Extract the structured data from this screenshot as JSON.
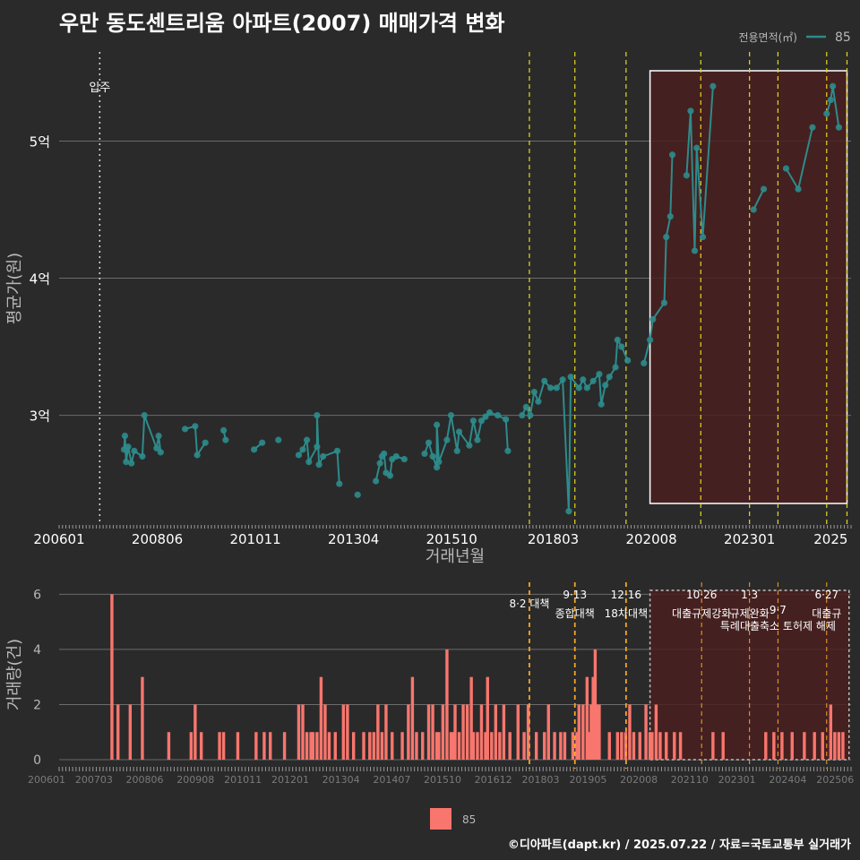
{
  "title": "우만 동도센트리움 아파트(2007) 매매가격 변화",
  "credit": "©디아파트(dapt.kr) / 2025.07.22 / 자료=국토교통부 실거래가",
  "colors": {
    "background": "#2a2a2b",
    "price_line": "#2e8b8b",
    "volume_bar": "#f8766d",
    "policy_line": "#e6d71e",
    "policy_line_low": "#f5a623",
    "highlight_fill": "#4a1f1f",
    "grid": "#6b6b6b",
    "text": "#ffffff",
    "muted": "#b8b8b8"
  },
  "chart_data": [
    {
      "type": "line",
      "name": "price",
      "xlabel": "거래년월",
      "ylabel": "평균가(원)",
      "legend_title": "전용면적(㎡)",
      "legend_entry": "85",
      "x_range": [
        2006.0,
        2025.5
      ],
      "y_range": [
        2.2,
        5.65
      ],
      "y_ticks": [
        3,
        4,
        5
      ],
      "y_tick_labels": [
        "3억",
        "4억",
        "5억"
      ],
      "x_ticks": [
        2006.0,
        2008.4167,
        2010.8333,
        2013.25,
        2015.6667,
        2018.1667,
        2020.5833,
        2023.0,
        2025.0
      ],
      "x_tick_labels": [
        "200601",
        "200806",
        "201011",
        "201304",
        "201510",
        "201803",
        "202008",
        "202301",
        "2025"
      ],
      "move_in": 2007.0,
      "move_in_label": "입주",
      "policy_lines": [
        2017.58,
        2018.7,
        2019.96,
        2021.8,
        2023.0,
        2023.7,
        2024.9,
        2025.4
      ],
      "highlight_range": [
        2020.55,
        2025.4
      ],
      "series": [
        {
          "name": "85",
          "points": [
            [
              2007.6,
              2.75
            ],
            [
              2007.62,
              2.85
            ],
            [
              2007.65,
              2.66
            ],
            [
              2007.7,
              2.77
            ],
            [
              2007.78,
              2.65
            ],
            [
              2007.85,
              2.74
            ],
            [
              2008.1,
              3.0
            ],
            [
              2008.05,
              2.7
            ],
            [
              2008.4,
              2.76
            ],
            [
              2008.45,
              2.85
            ],
            [
              2008.5,
              2.73
            ],
            [
              2009.1,
              2.9
            ],
            [
              2009.35,
              2.92
            ],
            [
              2009.4,
              2.71
            ],
            [
              2009.6,
              2.8
            ],
            [
              2010.05,
              2.89
            ],
            [
              2010.1,
              2.82
            ],
            [
              2010.8,
              2.75
            ],
            [
              2011.0,
              2.8
            ],
            [
              2011.4,
              2.82
            ],
            [
              2011.9,
              2.71
            ],
            [
              2012.0,
              2.75
            ],
            [
              2012.1,
              2.82
            ],
            [
              2012.15,
              2.66
            ],
            [
              2012.35,
              2.77
            ],
            [
              2012.4,
              2.64
            ],
            [
              2012.5,
              2.7
            ],
            [
              2012.35,
              3.0
            ],
            [
              2012.85,
              2.74
            ],
            [
              2012.9,
              2.5
            ],
            [
              2013.35,
              2.42
            ],
            [
              2013.8,
              2.52
            ],
            [
              2013.9,
              2.65
            ],
            [
              2013.95,
              2.7
            ],
            [
              2014.0,
              2.72
            ],
            [
              2014.05,
              2.58
            ],
            [
              2014.15,
              2.56
            ],
            [
              2014.2,
              2.68
            ],
            [
              2014.3,
              2.7
            ],
            [
              2014.5,
              2.68
            ],
            [
              2015.0,
              2.72
            ],
            [
              2015.1,
              2.8
            ],
            [
              2015.2,
              2.7
            ],
            [
              2015.3,
              2.62
            ],
            [
              2015.35,
              2.66
            ],
            [
              2015.3,
              2.93
            ],
            [
              2015.55,
              2.82
            ],
            [
              2015.65,
              3.0
            ],
            [
              2015.8,
              2.74
            ],
            [
              2015.85,
              2.88
            ],
            [
              2016.1,
              2.78
            ],
            [
              2016.2,
              2.96
            ],
            [
              2016.3,
              2.82
            ],
            [
              2016.4,
              2.96
            ],
            [
              2016.6,
              3.02
            ],
            [
              2016.5,
              2.99
            ],
            [
              2016.8,
              3.0
            ],
            [
              2017.0,
              2.97
            ],
            [
              2017.05,
              2.74
            ],
            [
              2017.4,
              3.0
            ],
            [
              2017.5,
              3.06
            ],
            [
              2017.6,
              3.0
            ],
            [
              2017.7,
              3.17
            ],
            [
              2017.8,
              3.1
            ],
            [
              2017.95,
              3.25
            ],
            [
              2018.1,
              3.2
            ],
            [
              2018.25,
              3.2
            ],
            [
              2018.4,
              3.26
            ],
            [
              2018.55,
              2.3
            ],
            [
              2018.6,
              3.28
            ],
            [
              2018.8,
              3.2
            ],
            [
              2018.9,
              3.26
            ],
            [
              2019.0,
              3.2
            ],
            [
              2019.15,
              3.25
            ],
            [
              2019.3,
              3.3
            ],
            [
              2019.35,
              3.08
            ],
            [
              2019.45,
              3.22
            ],
            [
              2019.55,
              3.28
            ],
            [
              2019.7,
              3.35
            ],
            [
              2019.75,
              3.55
            ],
            [
              2019.85,
              3.5
            ],
            [
              2020.0,
              3.4
            ],
            [
              2020.4,
              3.38
            ],
            [
              2020.55,
              3.55
            ],
            [
              2020.62,
              3.7
            ],
            [
              2020.9,
              3.82
            ],
            [
              2020.95,
              4.3
            ],
            [
              2021.05,
              4.45
            ],
            [
              2021.1,
              4.9
            ],
            [
              2021.45,
              4.75
            ],
            [
              2021.55,
              5.22
            ],
            [
              2021.65,
              4.2
            ],
            [
              2021.7,
              4.95
            ],
            [
              2021.85,
              4.3
            ],
            [
              2022.1,
              5.4
            ],
            [
              2023.1,
              4.5
            ],
            [
              2023.35,
              4.65
            ],
            [
              2023.9,
              4.8
            ],
            [
              2024.2,
              4.65
            ],
            [
              2024.55,
              5.1
            ],
            [
              2024.9,
              5.2
            ],
            [
              2025.0,
              5.3
            ],
            [
              2025.05,
              5.4
            ],
            [
              2025.2,
              5.1
            ]
          ]
        }
      ]
    },
    {
      "type": "bar",
      "name": "volume",
      "xlabel": "",
      "ylabel": "거래량(건)",
      "x_range": [
        2006.0,
        2025.5
      ],
      "y_range": [
        0,
        6.5
      ],
      "y_ticks": [
        0,
        2,
        4,
        6
      ],
      "x_ticks": [
        2006.0,
        2007.1667,
        2008.4167,
        2009.6667,
        2010.8333,
        2012.0,
        2013.25,
        2014.5,
        2015.75,
        2017.0,
        2018.1667,
        2019.3333,
        2020.5833,
        2021.8333,
        2023.0,
        2024.25,
        2025.4167
      ],
      "x_tick_labels": [
        "200601",
        "200703",
        "200806",
        "200908",
        "201011",
        "201201",
        "201304",
        "201407",
        "201510",
        "201612",
        "201803",
        "201905",
        "202008",
        "202110",
        "202301",
        "202404",
        "202506"
      ],
      "legend_entry": "85",
      "policies": [
        {
          "x": 2017.58,
          "date": "8·2 대책",
          "name": ""
        },
        {
          "x": 2018.7,
          "date": "9·13",
          "name": "종합대책"
        },
        {
          "x": 2019.96,
          "date": "12·16",
          "name": "18차대책"
        },
        {
          "x": 2021.82,
          "date": "10·26",
          "name": "대출규제강화"
        },
        {
          "x": 2023.0,
          "date": "1·3",
          "name": "규제완화"
        },
        {
          "x": 2023.7,
          "date": "9·7",
          "name": "특례대출축소 토허제 해제"
        },
        {
          "x": 2024.9,
          "date": "6·27",
          "name": "대출규"
        }
      ],
      "bars": [
        [
          2007.3,
          6
        ],
        [
          2007.45,
          2
        ],
        [
          2007.75,
          2
        ],
        [
          2008.05,
          3
        ],
        [
          2008.7,
          1
        ],
        [
          2009.25,
          1
        ],
        [
          2009.35,
          2
        ],
        [
          2009.5,
          1
        ],
        [
          2009.95,
          1
        ],
        [
          2010.05,
          1
        ],
        [
          2010.4,
          1
        ],
        [
          2010.85,
          1
        ],
        [
          2011.05,
          1
        ],
        [
          2011.2,
          1
        ],
        [
          2011.55,
          1
        ],
        [
          2011.9,
          2
        ],
        [
          2012.0,
          2
        ],
        [
          2012.1,
          1
        ],
        [
          2012.2,
          1
        ],
        [
          2012.25,
          1
        ],
        [
          2012.35,
          1
        ],
        [
          2012.45,
          3
        ],
        [
          2012.55,
          2
        ],
        [
          2012.65,
          1
        ],
        [
          2012.8,
          1
        ],
        [
          2013.0,
          2
        ],
        [
          2013.1,
          2
        ],
        [
          2013.25,
          1
        ],
        [
          2013.5,
          1
        ],
        [
          2013.65,
          1
        ],
        [
          2013.75,
          1
        ],
        [
          2013.85,
          2
        ],
        [
          2013.95,
          1
        ],
        [
          2014.05,
          2
        ],
        [
          2014.2,
          1
        ],
        [
          2014.45,
          1
        ],
        [
          2014.6,
          2
        ],
        [
          2014.7,
          3
        ],
        [
          2014.8,
          1
        ],
        [
          2014.95,
          1
        ],
        [
          2015.1,
          2
        ],
        [
          2015.2,
          2
        ],
        [
          2015.3,
          1
        ],
        [
          2015.35,
          1
        ],
        [
          2015.45,
          2
        ],
        [
          2015.55,
          4
        ],
        [
          2015.65,
          1
        ],
        [
          2015.7,
          1
        ],
        [
          2015.75,
          2
        ],
        [
          2015.85,
          1
        ],
        [
          2015.95,
          2
        ],
        [
          2016.05,
          2
        ],
        [
          2016.15,
          3
        ],
        [
          2016.2,
          1
        ],
        [
          2016.3,
          1
        ],
        [
          2016.4,
          2
        ],
        [
          2016.5,
          1
        ],
        [
          2016.55,
          3
        ],
        [
          2016.65,
          1
        ],
        [
          2016.75,
          2
        ],
        [
          2016.85,
          1
        ],
        [
          2016.95,
          2
        ],
        [
          2017.1,
          1
        ],
        [
          2017.3,
          2
        ],
        [
          2017.45,
          1
        ],
        [
          2017.55,
          2
        ],
        [
          2017.75,
          1
        ],
        [
          2017.95,
          1
        ],
        [
          2018.05,
          2
        ],
        [
          2018.2,
          1
        ],
        [
          2018.35,
          1
        ],
        [
          2018.45,
          1
        ],
        [
          2018.65,
          1
        ],
        [
          2018.75,
          1
        ],
        [
          2018.8,
          2
        ],
        [
          2018.9,
          2
        ],
        [
          2019.0,
          3
        ],
        [
          2019.05,
          1
        ],
        [
          2019.1,
          2
        ],
        [
          2019.15,
          3
        ],
        [
          2019.2,
          4
        ],
        [
          2019.25,
          2
        ],
        [
          2019.3,
          2
        ],
        [
          2019.55,
          1
        ],
        [
          2019.75,
          1
        ],
        [
          2019.85,
          1
        ],
        [
          2019.95,
          1
        ],
        [
          2020.05,
          2
        ],
        [
          2020.15,
          1
        ],
        [
          2020.3,
          1
        ],
        [
          2020.45,
          2
        ],
        [
          2020.55,
          1
        ],
        [
          2020.6,
          1
        ],
        [
          2020.7,
          2
        ],
        [
          2020.8,
          1
        ],
        [
          2020.95,
          1
        ],
        [
          2021.15,
          1
        ],
        [
          2021.3,
          1
        ],
        [
          2022.1,
          1
        ],
        [
          2022.35,
          1
        ],
        [
          2023.4,
          1
        ],
        [
          2023.6,
          1
        ],
        [
          2023.8,
          1
        ],
        [
          2024.05,
          1
        ],
        [
          2024.35,
          1
        ],
        [
          2024.6,
          1
        ],
        [
          2024.8,
          1
        ],
        [
          2025.0,
          2
        ],
        [
          2025.1,
          1
        ],
        [
          2025.2,
          1
        ],
        [
          2025.3,
          1
        ]
      ]
    }
  ]
}
